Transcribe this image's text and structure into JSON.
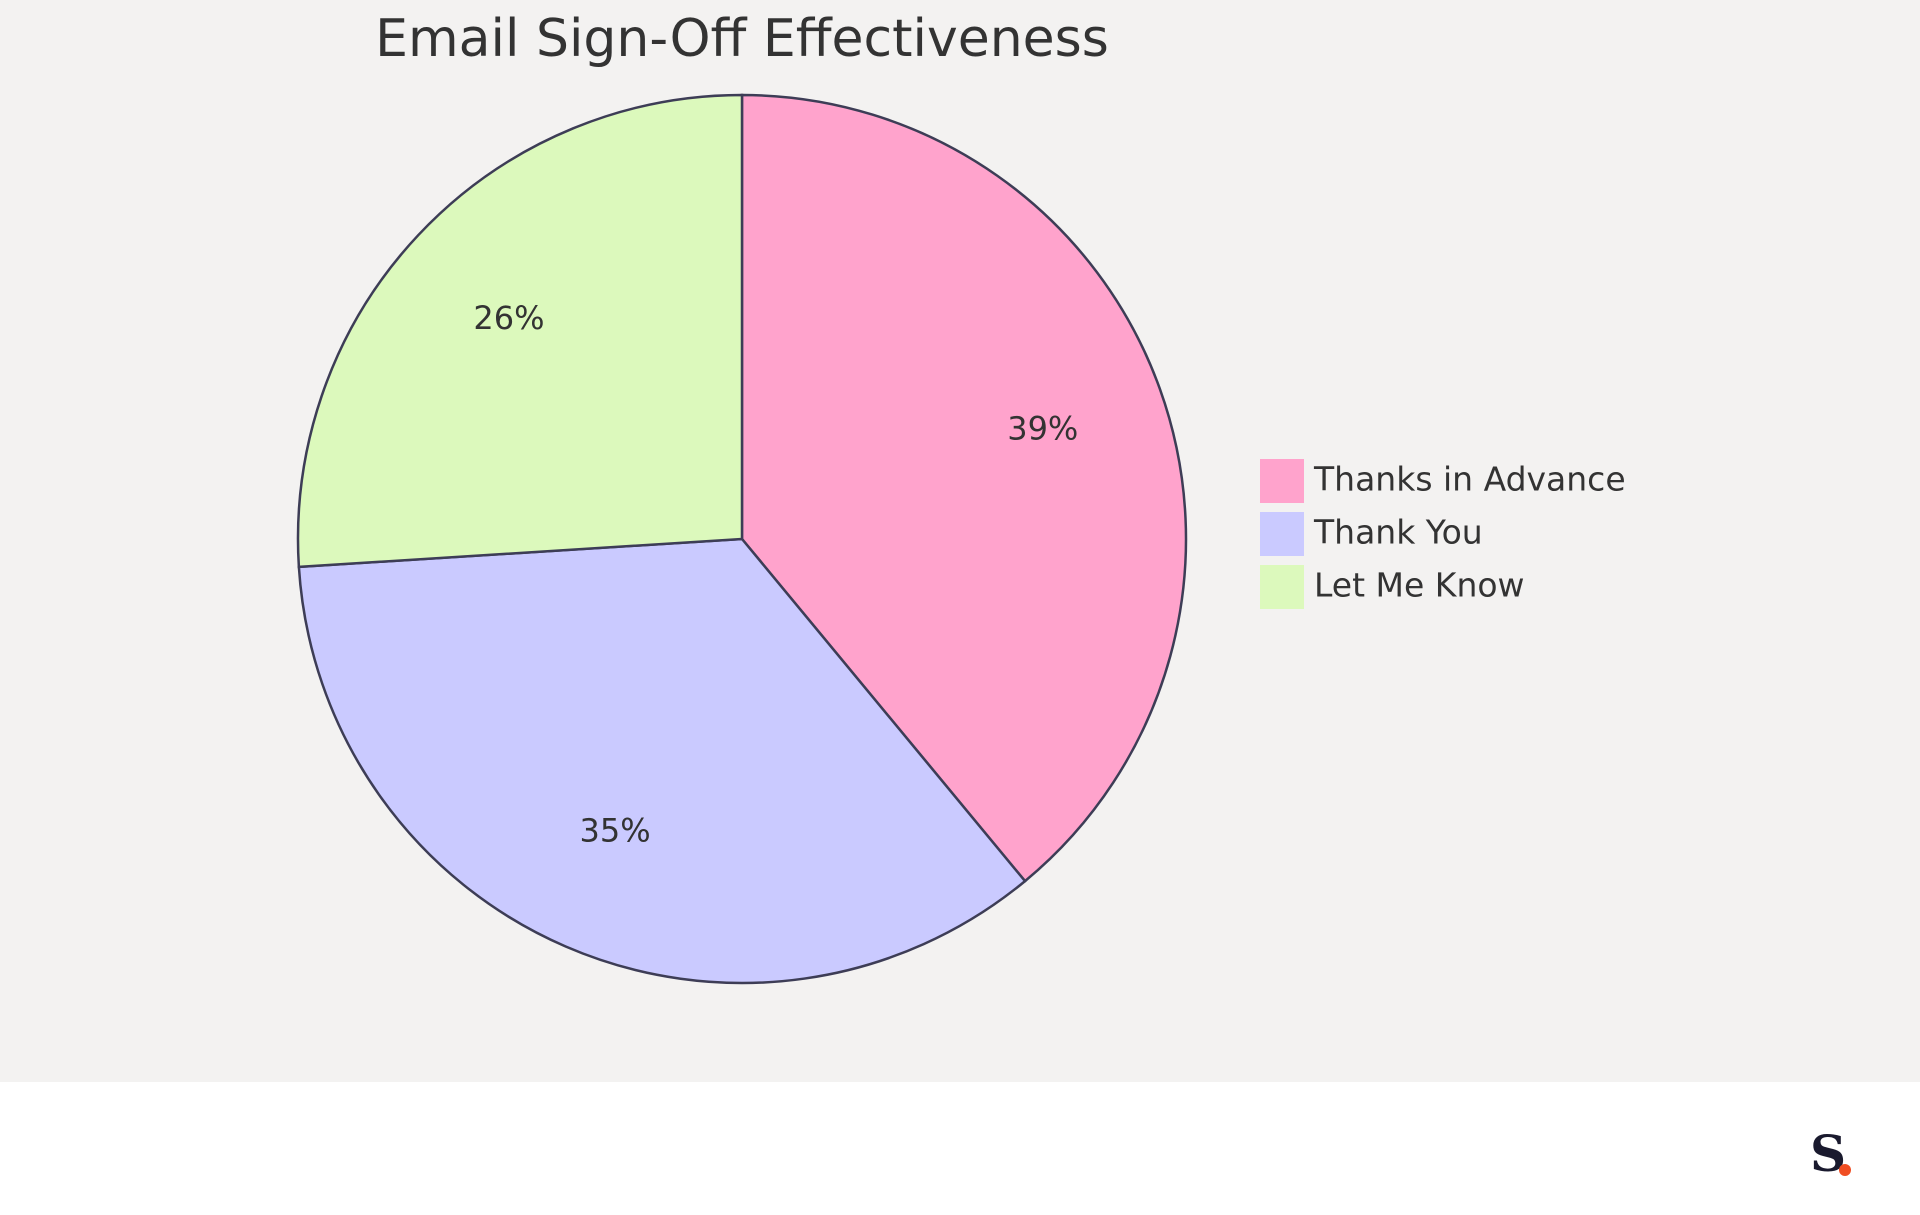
{
  "chart_data": {
    "type": "pie",
    "title": "Email Sign-Off Effectiveness",
    "categories": [
      "Thanks in Advance",
      "Thank You",
      "Let Me Know"
    ],
    "values": [
      39,
      35,
      26
    ],
    "value_labels": [
      "39%",
      "35%",
      "26%"
    ],
    "colors": [
      "#ffa3cc",
      "#cacaff",
      "#dcf9bc"
    ],
    "legend": "right"
  },
  "logo": "S"
}
